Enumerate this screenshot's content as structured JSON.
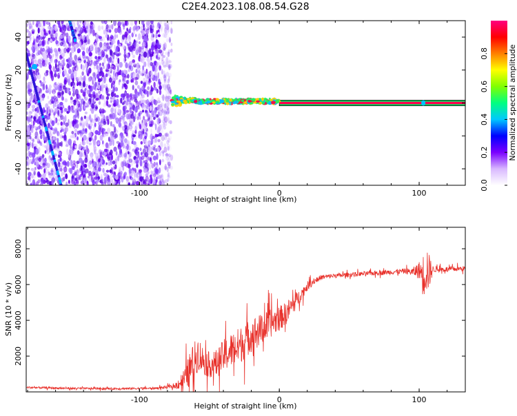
{
  "figure_title": "C2E4.2023.108.08.54.G28",
  "chart_data": [
    {
      "type": "heatmap",
      "title": "",
      "xlabel": "Height of straight line (km)",
      "ylabel": "Frequency (Hz)",
      "xlim": [
        -181,
        133
      ],
      "ylim": [
        -50,
        50
      ],
      "xticks": [
        -100,
        0,
        100
      ],
      "yticks": [
        -40,
        -20,
        0,
        20,
        40
      ],
      "xtick_labels": [
        "-100",
        "0",
        "100"
      ],
      "ytick_labels": [
        "-40",
        "-20",
        "0",
        "20",
        "40"
      ],
      "grid": false,
      "colorbar": {
        "label": "Normalized spectral amplitude",
        "range": [
          0,
          1
        ],
        "ticks": [
          0.0,
          0.2,
          0.4,
          0.6,
          0.8
        ],
        "tick_labels": [
          "0.0",
          "0.2",
          "0.4",
          "0.6",
          "0.8"
        ],
        "colormap": [
          "#ffffff",
          "#d8b8ff",
          "#7a00ff",
          "#0000ff",
          "#00c8ff",
          "#00ff80",
          "#80ff00",
          "#ffff00",
          "#ff8000",
          "#ff0000",
          "#ff0080"
        ]
      },
      "regions": {
        "noise_x_range": [
          -181,
          -77
        ],
        "carrier_x_range": [
          -77,
          133
        ],
        "carrier_frequency_hz": 0,
        "diagonal_tracks": [
          {
            "x": [
              -181,
              -156
            ],
            "y": [
              30,
              -50
            ]
          },
          {
            "x": [
              -150,
              -146
            ],
            "y": [
              50,
              38
            ]
          }
        ]
      }
    },
    {
      "type": "line",
      "title": "",
      "xlabel": "Height of straight line (km)",
      "ylabel": "SNR (10 * v/v)",
      "xlim": [
        -181,
        133
      ],
      "ylim": [
        0,
        9200
      ],
      "xticks": [
        -100,
        0,
        100
      ],
      "yticks": [
        2000,
        4000,
        6000,
        8000
      ],
      "xtick_labels": [
        "-100",
        "0",
        "100"
      ],
      "ytick_labels": [
        "2000",
        "4000",
        "6000",
        "8000"
      ],
      "grid": false,
      "color": "#e8302a",
      "x": [
        -181,
        -150,
        -120,
        -90,
        -75,
        -68,
        -62,
        -58,
        -55,
        -50,
        -45,
        -40,
        -35,
        -30,
        -25,
        -20,
        -15,
        -10,
        -5,
        0,
        5,
        10,
        15,
        20,
        25,
        30,
        40,
        50,
        60,
        70,
        80,
        90,
        95,
        100,
        103,
        105,
        107,
        110,
        120,
        133
      ],
      "values": [
        250,
        200,
        180,
        200,
        300,
        700,
        1500,
        2200,
        1800,
        1500,
        1600,
        2000,
        2300,
        2500,
        2800,
        3200,
        3400,
        3600,
        3900,
        4100,
        4400,
        4900,
        5400,
        5900,
        6200,
        6400,
        6500,
        6550,
        6600,
        6650,
        6700,
        6750,
        6700,
        6800,
        6500,
        7000,
        6700,
        6850,
        6850,
        6900
      ],
      "noise_amplitude": [
        80,
        80,
        80,
        80,
        150,
        900,
        1600,
        1400,
        1200,
        1000,
        1100,
        1300,
        1400,
        1500,
        1400,
        1400,
        1300,
        1200,
        1100,
        1000,
        900,
        800,
        500,
        350,
        250,
        200,
        180,
        180,
        180,
        180,
        200,
        220,
        300,
        700,
        1800,
        2200,
        1500,
        250,
        200,
        200
      ]
    }
  ]
}
